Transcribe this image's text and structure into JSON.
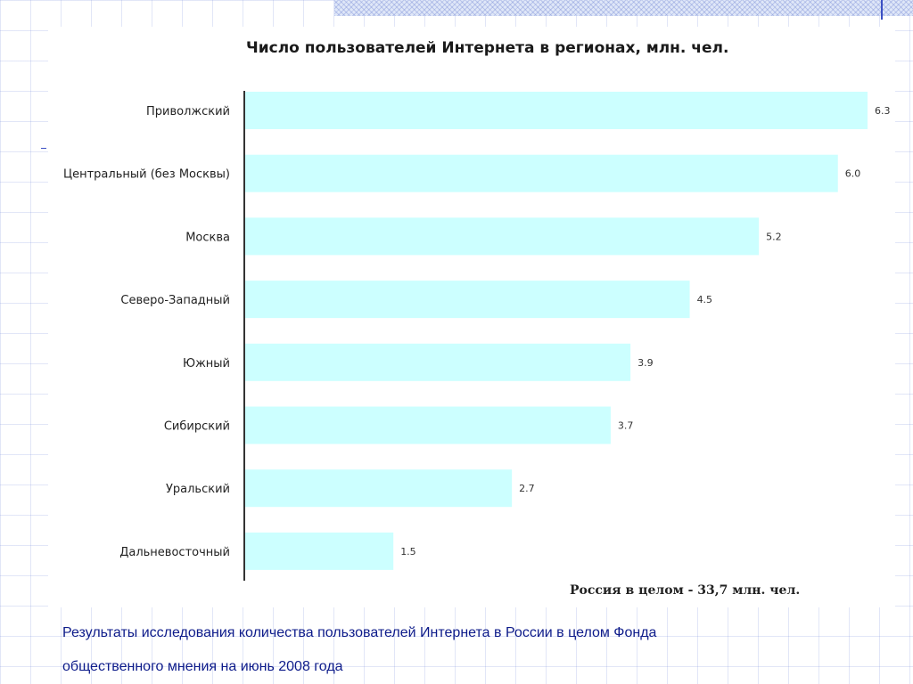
{
  "decor": {
    "accent": "#3b4fc4",
    "grid_color": "#8c9edc",
    "bar_color": "#ccffff"
  },
  "chart_data": {
    "type": "bar",
    "orientation": "horizontal",
    "title": "Число пользователей Интернета  в регионах, млн. чел.",
    "categories": [
      "Приволжский",
      "Центральный (без Москвы)",
      "Москва",
      "Северо-Западный",
      "Южный",
      "Сибирский",
      "Уральский",
      "Дальневосточный"
    ],
    "values": [
      6.3,
      6.0,
      5.2,
      4.5,
      3.9,
      3.7,
      2.7,
      1.5
    ],
    "value_labels": [
      "6.3",
      "6.0",
      "5.2",
      "4.5",
      "3.9",
      "3.7",
      "2.7",
      "1.5"
    ],
    "annotation": "Россия в целом - 33,7 млн. чел.",
    "xlim": [
      0,
      6.3
    ],
    "grid": false,
    "legend": "none"
  },
  "caption": {
    "line1": "Результаты исследования количества пользователей Интернета в России в целом  Фонда",
    "line2": "общественного мнения  на июнь 2008 года"
  }
}
